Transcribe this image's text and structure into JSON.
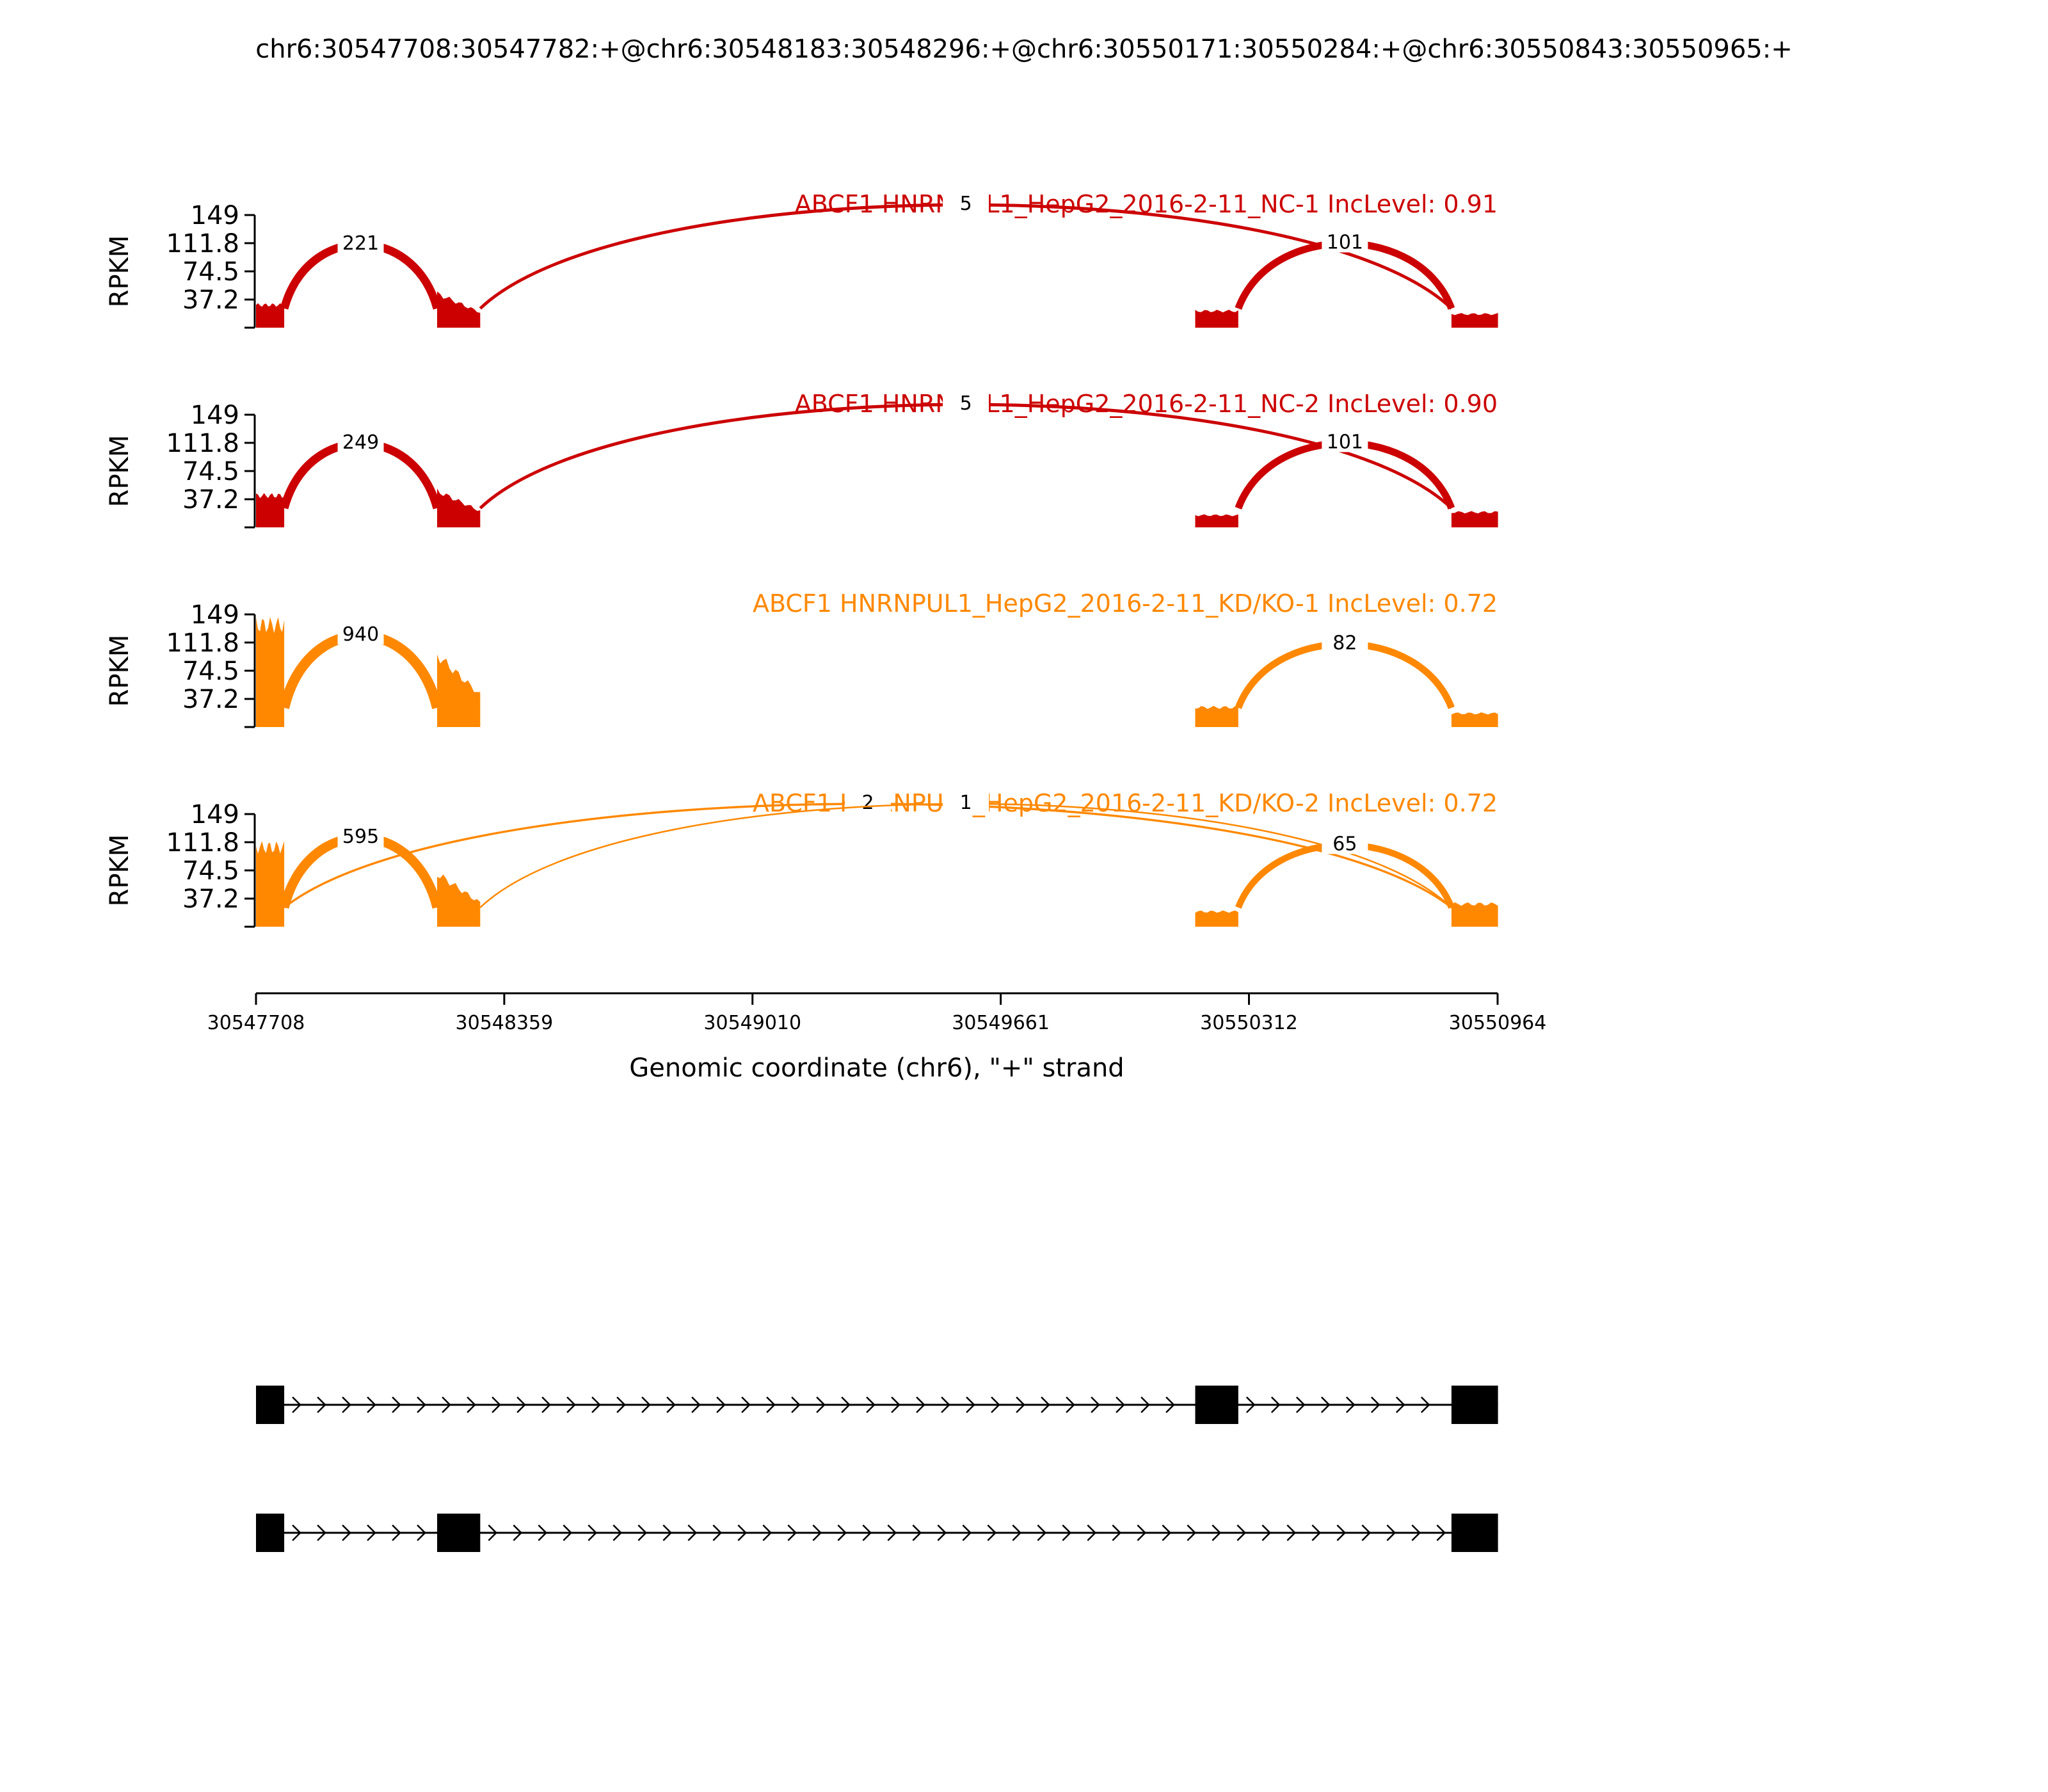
{
  "chart_data": {
    "type": "area",
    "title": "chr6:30547708:30547782:+@chr6:30548183:30548296:+@chr6:30550171:30550284:+@chr6:30550843:30550965:+",
    "xlabel": "Genomic coordinate (chr6), \"+\" strand",
    "ylabel": "RPKM",
    "xlim": [
      30547708,
      30550964
    ],
    "x_ticks": [
      "30547708",
      "30548359",
      "30549010",
      "30549661",
      "30550312",
      "30550964"
    ],
    "y_ticks": [
      "37.2",
      "74.5",
      "111.8",
      "149"
    ],
    "ylim": [
      0,
      149
    ],
    "colors": {
      "control": "#cc0000",
      "knockdown": "#ff8800",
      "axis": "#000000"
    },
    "exons": [
      {
        "start": 30547708,
        "end": 30547782
      },
      {
        "start": 30548183,
        "end": 30548296
      },
      {
        "start": 30550171,
        "end": 30550284
      },
      {
        "start": 30550843,
        "end": 30550965
      }
    ],
    "series": [
      {
        "name": "ABCF1 HNRNPUL1_HepG2_2016-2-11_NC-1 IncLevel: 0.91",
        "group": "control",
        "coverage": [
          30,
          45,
          22,
          18
        ],
        "junctions": [
          {
            "label": "221",
            "start": 30547782,
            "end": 30548183,
            "count": 221,
            "side": "top"
          },
          {
            "label": "5",
            "start": 30548296,
            "end": 30550843,
            "count": 5,
            "side": "top"
          },
          {
            "label": "101",
            "start": 30550284,
            "end": 30550843,
            "count": 101,
            "side": "top"
          }
        ]
      },
      {
        "name": "ABCF1 HNRNPUL1_HepG2_2016-2-11_NC-2 IncLevel: 0.90",
        "group": "control",
        "coverage": [
          42,
          48,
          16,
          20
        ],
        "junctions": [
          {
            "label": "249",
            "start": 30547782,
            "end": 30548183,
            "count": 249,
            "side": "top"
          },
          {
            "label": "5",
            "start": 30548296,
            "end": 30550843,
            "count": 5,
            "side": "top"
          },
          {
            "label": "101",
            "start": 30550284,
            "end": 30550843,
            "count": 101,
            "side": "top"
          }
        ]
      },
      {
        "name": "ABCF1 HNRNPUL1_HepG2_2016-2-11_KD/KO-1 IncLevel: 0.72",
        "group": "knockdown",
        "coverage": [
          135,
          95,
          26,
          18
        ],
        "junctions": [
          {
            "label": "940",
            "start": 30547782,
            "end": 30548183,
            "count": 940,
            "side": "top"
          },
          {
            "label": "82",
            "start": 30550284,
            "end": 30550843,
            "count": 82,
            "side": "top"
          }
        ]
      },
      {
        "name": "ABCF1 HNRNPUL1_HepG2_2016-2-11_KD/KO-2 IncLevel: 0.72",
        "group": "knockdown",
        "coverage": [
          105,
          70,
          20,
          30
        ],
        "junctions": [
          {
            "label": "595",
            "start": 30547782,
            "end": 30548183,
            "count": 595,
            "side": "top"
          },
          {
            "label": "2",
            "start": 30547782,
            "end": 30550843,
            "count": 2,
            "side": "top"
          },
          {
            "label": "1",
            "start": 30548296,
            "end": 30550843,
            "count": 1,
            "side": "top"
          },
          {
            "label": "65",
            "start": 30550284,
            "end": 30550843,
            "count": 65,
            "side": "top"
          }
        ]
      }
    ],
    "isoforms": [
      {
        "exons": [
          0,
          2,
          3
        ]
      },
      {
        "exons": [
          0,
          1,
          3
        ]
      }
    ]
  }
}
